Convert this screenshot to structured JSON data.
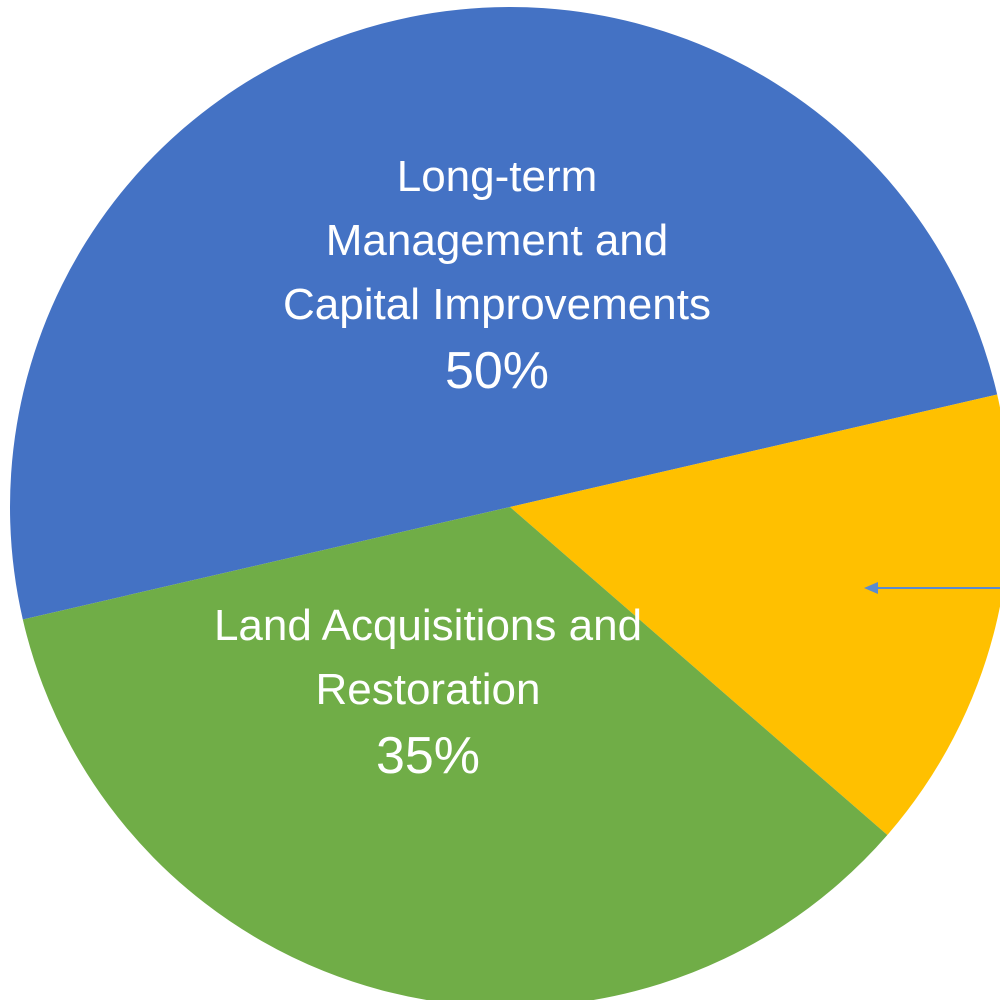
{
  "chart_data": {
    "type": "pie",
    "categories": [
      "Long-term Management and Capital Improvements",
      null,
      "Land Acquisitions and Restoration"
    ],
    "values": [
      50,
      15,
      35
    ],
    "value_labels": [
      "50%",
      null,
      "35%"
    ],
    "colors": [
      "#4472c4",
      "#ffc000",
      "#70ad47"
    ]
  }
}
